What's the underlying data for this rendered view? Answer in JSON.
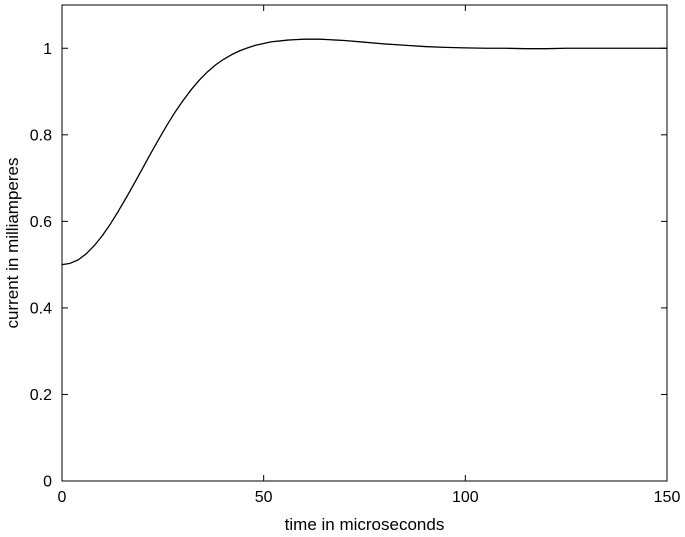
{
  "chart_data": {
    "type": "line",
    "title": "",
    "xlabel": "time in microseconds",
    "ylabel": "current in milliamperes",
    "xlim": [
      0,
      150
    ],
    "ylim": [
      0,
      1.1
    ],
    "xticks": [
      0,
      50,
      100,
      150
    ],
    "xtick_labels": [
      "0",
      "50",
      "100",
      "150"
    ],
    "yticks": [
      0,
      0.2,
      0.4,
      0.6,
      0.8,
      1
    ],
    "ytick_labels": [
      "0",
      "0.2",
      "0.4",
      "0.6",
      "0.8",
      "1"
    ],
    "grid": false,
    "legend": "none",
    "line_color": "#000000",
    "series": [
      {
        "x": [
          0,
          2,
          4,
          6,
          8,
          10,
          12,
          14,
          16,
          18,
          20,
          22,
          24,
          26,
          28,
          30,
          32,
          34,
          36,
          38,
          40,
          42,
          44,
          46,
          48,
          50,
          52,
          54,
          56,
          58,
          60,
          62,
          64,
          66,
          68,
          70,
          75,
          80,
          85,
          90,
          95,
          100,
          105,
          110,
          115,
          120,
          125,
          130,
          135,
          140,
          145,
          150
        ],
        "y": [
          0.5,
          0.503,
          0.511,
          0.525,
          0.544,
          0.567,
          0.594,
          0.624,
          0.656,
          0.689,
          0.723,
          0.757,
          0.79,
          0.822,
          0.852,
          0.879,
          0.904,
          0.926,
          0.945,
          0.961,
          0.974,
          0.985,
          0.994,
          1.001,
          1.007,
          1.011,
          1.015,
          1.017,
          1.019,
          1.02,
          1.021,
          1.021,
          1.021,
          1.02,
          1.019,
          1.018,
          1.014,
          1.01,
          1.007,
          1.004,
          1.002,
          1.001,
          1.0,
          1.0,
          0.999,
          0.999,
          1.0,
          1.0,
          1.0,
          1.0,
          1.0,
          1.0
        ]
      }
    ]
  }
}
